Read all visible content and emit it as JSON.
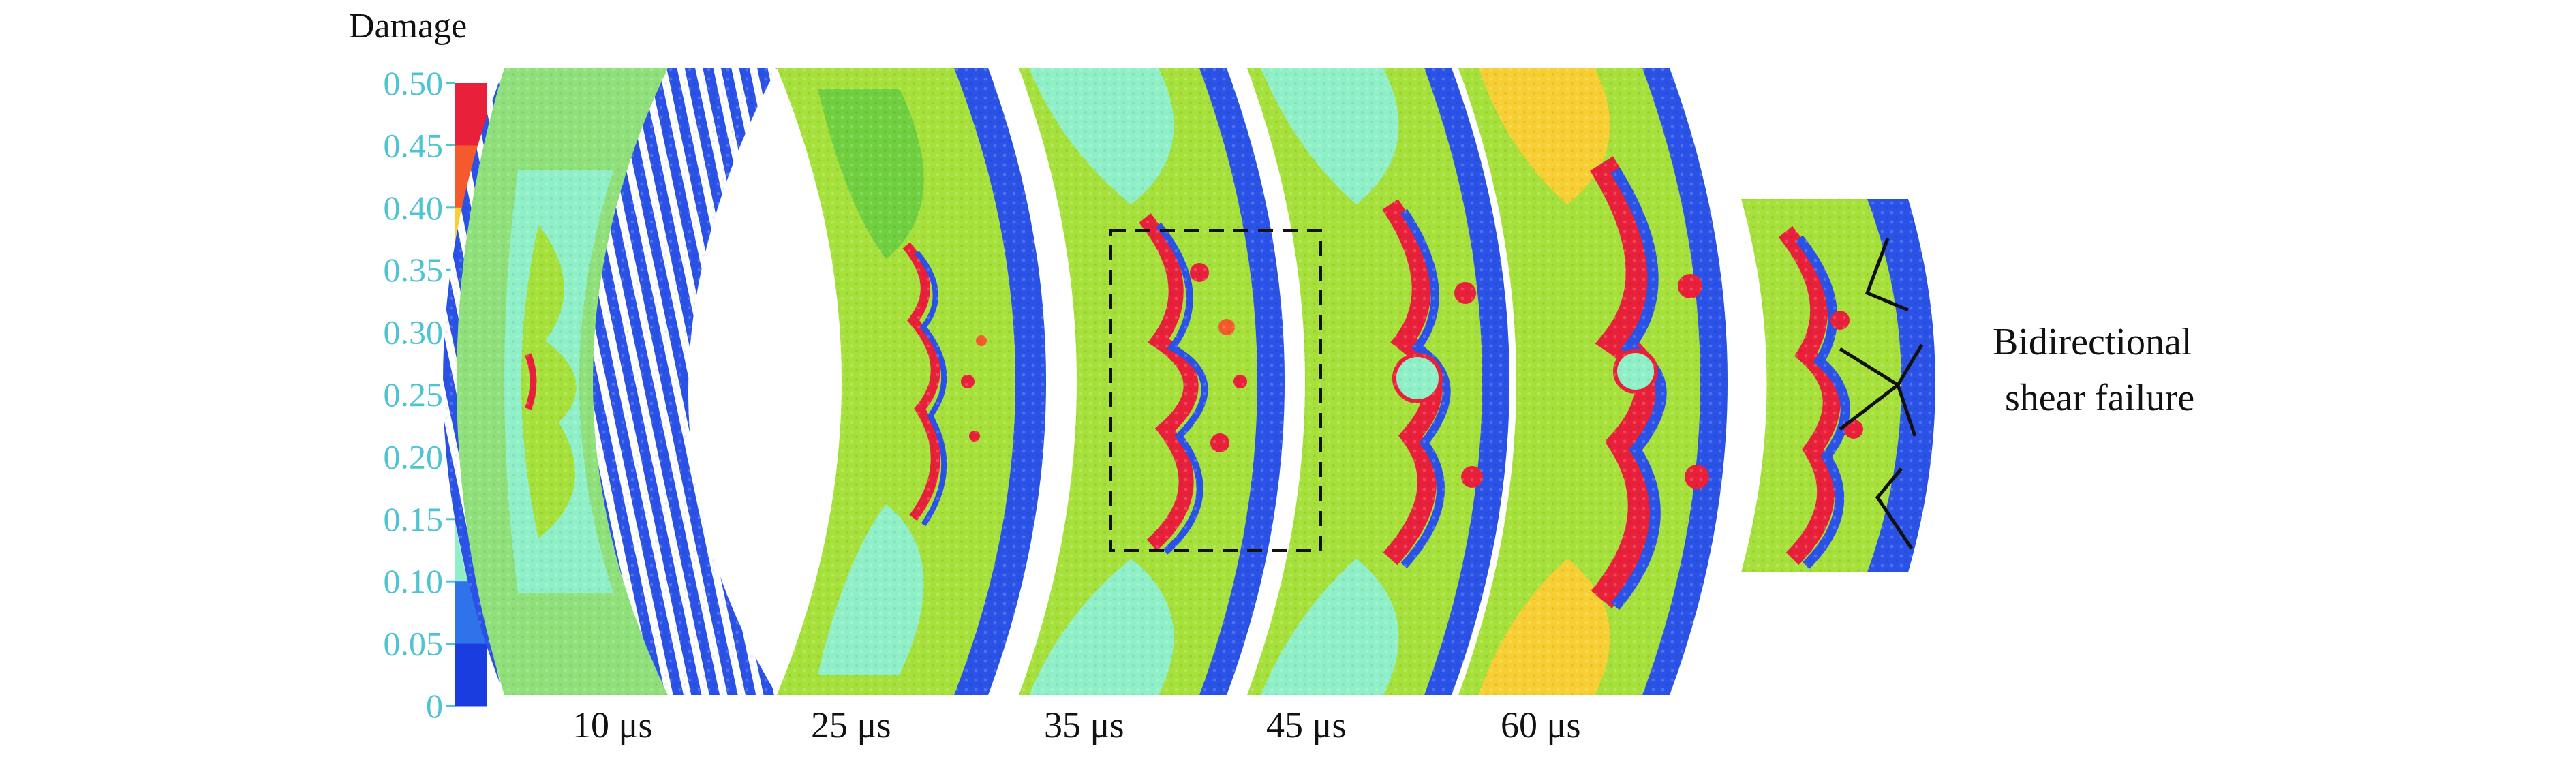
{
  "legend": {
    "title": "Damage",
    "ticks": [
      "0.50",
      "0.45",
      "0.40",
      "0.35",
      "0.30",
      "0.25",
      "0.20",
      "0.15",
      "0.10",
      "0.05",
      "0"
    ],
    "tick_color": "#4ec3d1",
    "colors": [
      "#e8203a",
      "#f45a2c",
      "#f7cf33",
      "#d5ef3e",
      "#a6e03a",
      "#6fcf3f",
      "#8fe07a",
      "#8ff0c8",
      "#2f73ea",
      "#1a3de0"
    ]
  },
  "times": [
    "10 μs",
    "25 μs",
    "35 μs",
    "45 μs",
    "60 μs"
  ],
  "annotation": {
    "line1": "Bidirectional",
    "line2": "shear failure"
  }
}
